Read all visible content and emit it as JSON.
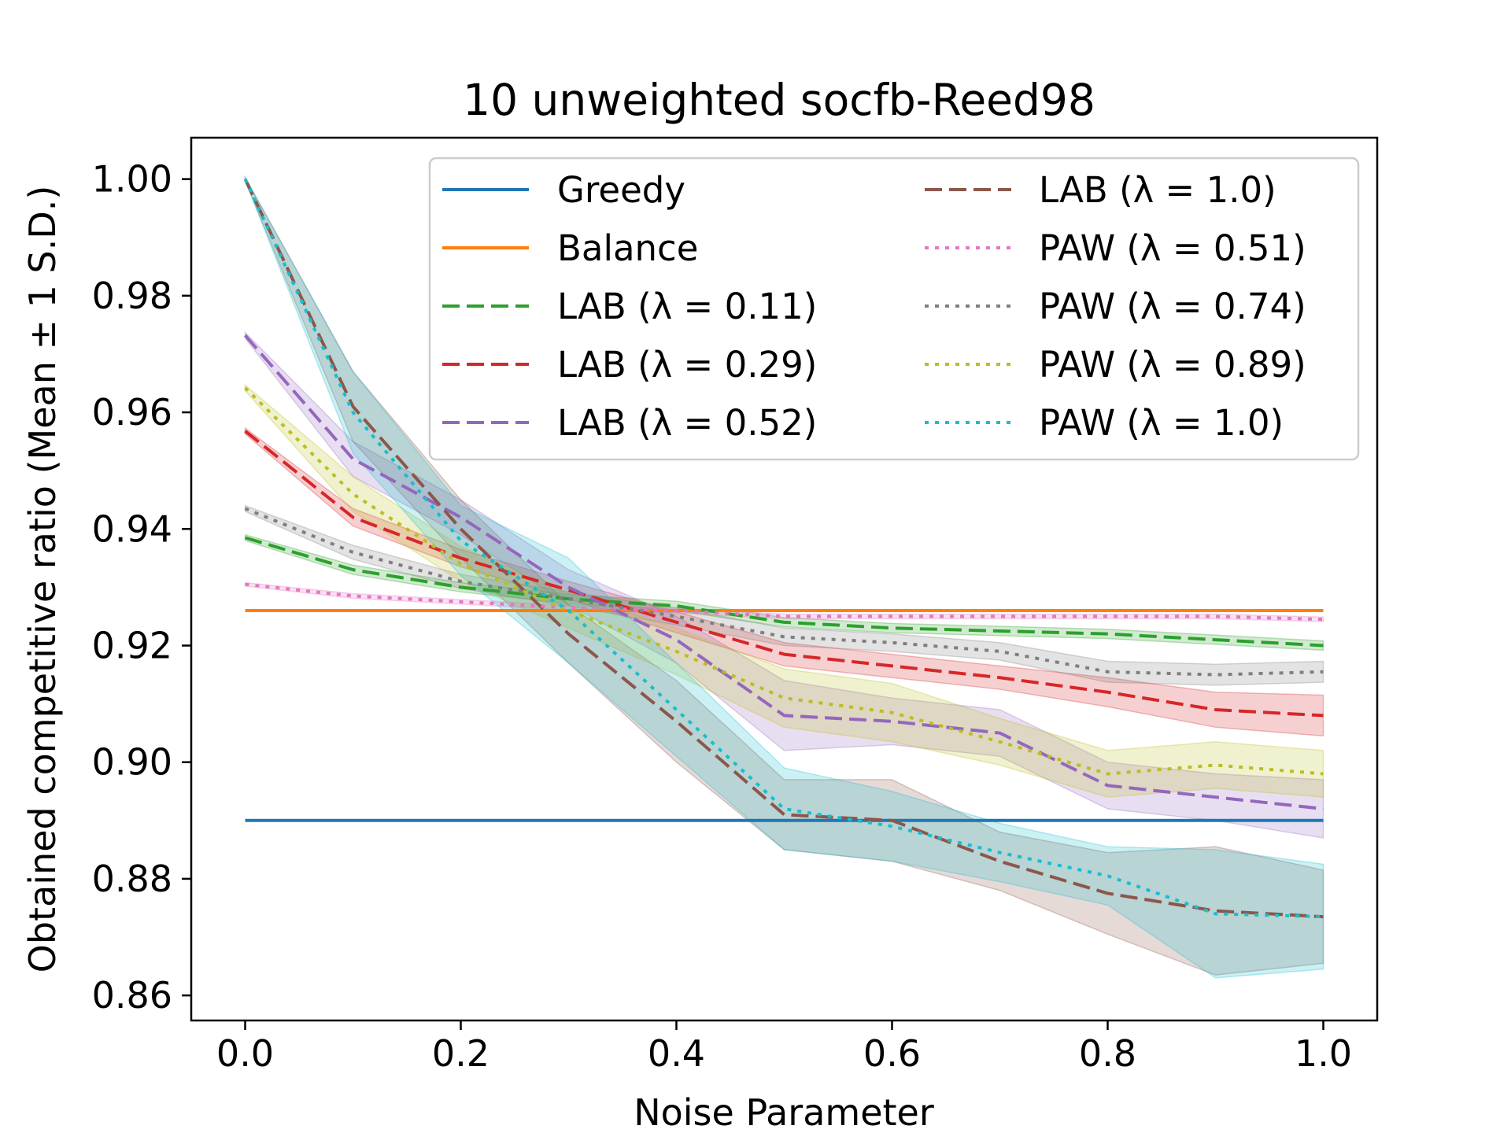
{
  "chart_data": {
    "type": "line",
    "title": "10 unweighted socfb-Reed98",
    "xlabel": "Noise Parameter",
    "ylabel": "Obtained competitive ratio (Mean ± 1 S.D.)",
    "xlim": [
      -0.05,
      1.05
    ],
    "ylim": [
      0.8557,
      1.0071
    ],
    "xticks": [
      0.0,
      0.2,
      0.4,
      0.6,
      0.8,
      1.0
    ],
    "xtick_labels": [
      "0.0",
      "0.2",
      "0.4",
      "0.6",
      "0.8",
      "1.0"
    ],
    "yticks": [
      0.86,
      0.88,
      0.9,
      0.92,
      0.94,
      0.96,
      0.98,
      1.0
    ],
    "ytick_labels": [
      "0.86",
      "0.88",
      "0.90",
      "0.92",
      "0.94",
      "0.96",
      "0.98",
      "1.00"
    ],
    "legend_position": "top-right",
    "x": [
      0.0,
      0.1,
      0.2,
      0.3,
      0.4,
      0.5,
      0.6,
      0.7,
      0.8,
      0.9,
      1.0
    ],
    "series": [
      {
        "name": "Greedy",
        "color": "#1f77b4",
        "style": "solid",
        "values": [
          0.89,
          0.89,
          0.89,
          0.89,
          0.89,
          0.89,
          0.89,
          0.89,
          0.89,
          0.89,
          0.89
        ]
      },
      {
        "name": "Balance",
        "color": "#ff7f0e",
        "style": "solid",
        "values": [
          0.926,
          0.926,
          0.926,
          0.926,
          0.926,
          0.926,
          0.926,
          0.926,
          0.926,
          0.926,
          0.926
        ]
      },
      {
        "name": "LAB (λ = 0.11)",
        "color": "#2ca02c",
        "style": "dashed",
        "values": [
          0.9385,
          0.933,
          0.93,
          0.928,
          0.9268,
          0.924,
          0.923,
          0.9225,
          0.922,
          0.921,
          0.92
        ],
        "sd": [
          0.0005,
          0.0008,
          0.0008,
          0.0008,
          0.0008,
          0.0008,
          0.0008,
          0.0008,
          0.0008,
          0.0008,
          0.0008
        ]
      },
      {
        "name": "LAB (λ = 0.29)",
        "color": "#d62728",
        "style": "dashed",
        "values": [
          0.9568,
          0.942,
          0.935,
          0.9295,
          0.924,
          0.9185,
          0.9165,
          0.9145,
          0.912,
          0.909,
          0.908
        ],
        "sd": [
          0.0005,
          0.0015,
          0.0015,
          0.0015,
          0.0018,
          0.002,
          0.002,
          0.002,
          0.0025,
          0.003,
          0.0035
        ]
      },
      {
        "name": "LAB (λ = 0.52)",
        "color": "#9467bd",
        "style": "dashed",
        "values": [
          0.9732,
          0.952,
          0.942,
          0.93,
          0.921,
          0.908,
          0.907,
          0.905,
          0.896,
          0.894,
          0.892
        ],
        "sd": [
          0.0005,
          0.003,
          0.003,
          0.003,
          0.004,
          0.006,
          0.004,
          0.004,
          0.004,
          0.004,
          0.005
        ]
      },
      {
        "name": "LAB (λ = 1.0)",
        "color": "#8c564b",
        "style": "dashed",
        "values": [
          1.0,
          0.961,
          0.94,
          0.922,
          0.907,
          0.891,
          0.89,
          0.883,
          0.8775,
          0.8745,
          0.8735
        ],
        "sd": [
          0.0003,
          0.006,
          0.005,
          0.005,
          0.007,
          0.006,
          0.007,
          0.005,
          0.007,
          0.011,
          0.008
        ]
      },
      {
        "name": "PAW (λ = 0.51)",
        "color": "#e377c2",
        "style": "dotted",
        "values": [
          0.9305,
          0.9285,
          0.9275,
          0.9265,
          0.926,
          0.925,
          0.925,
          0.925,
          0.925,
          0.925,
          0.9245
        ],
        "sd": [
          0.0003,
          0.0004,
          0.0004,
          0.0004,
          0.0004,
          0.0004,
          0.0004,
          0.0004,
          0.0004,
          0.0004,
          0.0004
        ]
      },
      {
        "name": "PAW (λ = 0.74)",
        "color": "#7f7f7f",
        "style": "dotted",
        "values": [
          0.9435,
          0.936,
          0.931,
          0.928,
          0.925,
          0.9215,
          0.9205,
          0.919,
          0.9155,
          0.915,
          0.9155
        ],
        "sd": [
          0.0005,
          0.0012,
          0.0012,
          0.0012,
          0.0015,
          0.0015,
          0.0015,
          0.0015,
          0.0018,
          0.0018,
          0.0018
        ]
      },
      {
        "name": "PAW (λ = 0.89)",
        "color": "#bcbd22",
        "style": "dotted",
        "values": [
          0.9642,
          0.946,
          0.934,
          0.926,
          0.919,
          0.911,
          0.9085,
          0.9035,
          0.898,
          0.8995,
          0.898
        ],
        "sd": [
          0.0005,
          0.003,
          0.003,
          0.003,
          0.004,
          0.005,
          0.005,
          0.004,
          0.004,
          0.004,
          0.004
        ]
      },
      {
        "name": "PAW (λ = 1.0)",
        "color": "#17becf",
        "style": "dotted",
        "values": [
          1.0,
          0.96,
          0.938,
          0.926,
          0.909,
          0.892,
          0.889,
          0.8845,
          0.8805,
          0.874,
          0.8735
        ],
        "sd": [
          0.0003,
          0.007,
          0.006,
          0.009,
          0.008,
          0.007,
          0.006,
          0.005,
          0.005,
          0.011,
          0.009
        ]
      }
    ]
  }
}
